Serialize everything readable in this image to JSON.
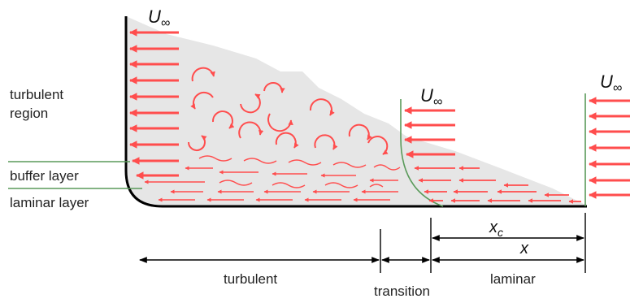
{
  "free_stream_symbol": "U",
  "free_stream_subscript": "∞",
  "region_labels": {
    "turbulent_region_line1": "turbulent",
    "turbulent_region_line2": "region",
    "buffer_layer": "buffer layer",
    "laminar_layer": "laminar layer"
  },
  "dimension_labels": {
    "xc_symbol": "x",
    "xc_subscript": "c",
    "x": "x",
    "turbulent": "turbulent",
    "transition": "transition",
    "laminar": "laminar"
  },
  "colors": {
    "velocity_arrow": "#ff4d4d",
    "eddy": "#ff4d4d",
    "wall": "#000000",
    "boundary_layer_fill": "#e6e6e6",
    "profile_line": "#5a9a5a",
    "dimension_line": "#000000"
  }
}
